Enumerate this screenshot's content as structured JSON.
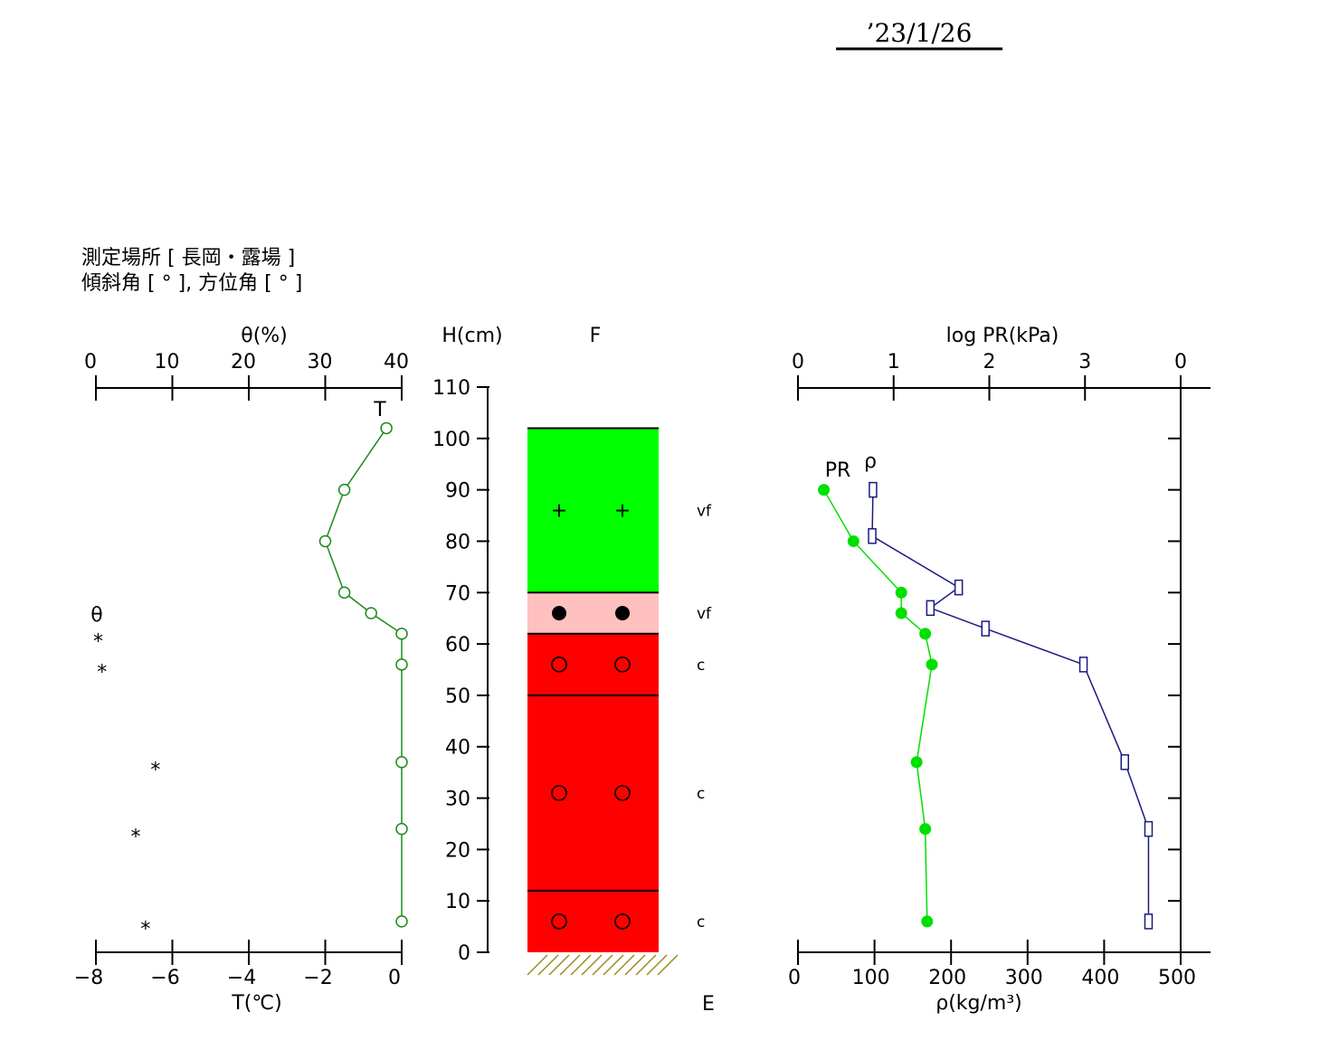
{
  "header": {
    "date": "’23/1/26",
    "site_label": "測定場所 [ 長岡・露場 ]",
    "angle_label": "傾斜角 [ ° ], 方位角 [ ° ]"
  },
  "colors": {
    "temp": "#1a8a1a",
    "pr": "#1a1a80",
    "density": "#00e000",
    "layer_green": "#00ff00",
    "layer_pink": "#ffc0c0",
    "layer_red": "#ff0000",
    "ground_hatch": "#9a8a20"
  },
  "chart_data": [
    {
      "type": "line",
      "name": "temperature-moisture-profile",
      "top_axis": {
        "label": "θ(%)",
        "range": [
          0,
          40
        ],
        "ticks": [
          0,
          10,
          20,
          30,
          40
        ]
      },
      "bottom_axis": {
        "label": "T(℃)",
        "range": [
          -8,
          0
        ],
        "ticks": [
          -8,
          -6,
          -4,
          -2,
          0
        ]
      },
      "y_axis": {
        "label": "H(cm)",
        "range": [
          0,
          110
        ],
        "ticks": [
          0,
          10,
          20,
          30,
          40,
          50,
          60,
          70,
          80,
          90,
          100,
          110
        ]
      },
      "temperature_series": {
        "name": "T",
        "points": [
          {
            "h": 102,
            "t": -0.4
          },
          {
            "h": 90,
            "t": -1.5
          },
          {
            "h": 80,
            "t": -2.0
          },
          {
            "h": 70,
            "t": -1.5
          },
          {
            "h": 66,
            "t": -0.8
          },
          {
            "h": 62,
            "t": 0.0
          },
          {
            "h": 56,
            "t": 0.0
          },
          {
            "h": 37,
            "t": 0.0
          },
          {
            "h": 24,
            "t": 0.0
          },
          {
            "h": 6,
            "t": 0.0
          }
        ]
      },
      "moisture_series": {
        "name": "θ",
        "marker": "*",
        "points": [
          {
            "h": 61,
            "theta": 0.3
          },
          {
            "h": 55,
            "theta": 0.8
          },
          {
            "h": 36,
            "theta": 7.8
          },
          {
            "h": 23,
            "theta": 5.2
          },
          {
            "h": 5,
            "theta": 6.5
          }
        ]
      }
    },
    {
      "type": "table",
      "name": "snow-stratigraphy",
      "column_label": "F",
      "ground_label": "E",
      "layers": [
        {
          "bottom": 70,
          "top": 102,
          "fill": "green",
          "symbol": "+",
          "grain": "vf"
        },
        {
          "bottom": 62,
          "top": 70,
          "fill": "pink",
          "symbol": "●",
          "grain": "vf"
        },
        {
          "bottom": 50,
          "top": 62,
          "fill": "red",
          "symbol": "○",
          "grain": "c"
        },
        {
          "bottom": 12,
          "top": 50,
          "fill": "red",
          "symbol": "○",
          "grain": "c"
        },
        {
          "bottom": 0,
          "top": 12,
          "fill": "red",
          "symbol": "○",
          "grain": "c"
        }
      ],
      "symbol_heights": [
        86,
        66,
        56,
        31,
        6
      ]
    },
    {
      "type": "line",
      "name": "hardness-density-profile",
      "top_axis": {
        "label": "log PR(kPa)",
        "range": [
          0,
          4
        ],
        "ticks": [
          0,
          1,
          2,
          3
        ],
        "end_label": "0"
      },
      "bottom_axis": {
        "label": "ρ(kg/m³)",
        "range": [
          0,
          500
        ],
        "ticks": [
          0,
          100,
          200,
          300,
          400,
          500
        ]
      },
      "pr_series": {
        "name": "PR",
        "points": [
          {
            "h": 90,
            "log_pr": 0.27
          },
          {
            "h": 80,
            "log_pr": 0.58
          },
          {
            "h": 70,
            "log_pr": 1.08
          },
          {
            "h": 66,
            "log_pr": 1.08
          },
          {
            "h": 62,
            "log_pr": 1.33
          },
          {
            "h": 56,
            "log_pr": 1.4
          },
          {
            "h": 37,
            "log_pr": 1.24
          },
          {
            "h": 24,
            "log_pr": 1.33
          },
          {
            "h": 6,
            "log_pr": 1.35
          }
        ]
      },
      "density_series": {
        "name": "ρ",
        "points": [
          {
            "h": 90,
            "rho": 98
          },
          {
            "h": 81,
            "rho": 97
          },
          {
            "h": 71,
            "rho": 210
          },
          {
            "h": 67,
            "rho": 173
          },
          {
            "h": 63,
            "rho": 245
          },
          {
            "h": 56,
            "rho": 373
          },
          {
            "h": 37,
            "rho": 427
          },
          {
            "h": 24,
            "rho": 458
          },
          {
            "h": 6,
            "rho": 458
          }
        ]
      }
    }
  ]
}
